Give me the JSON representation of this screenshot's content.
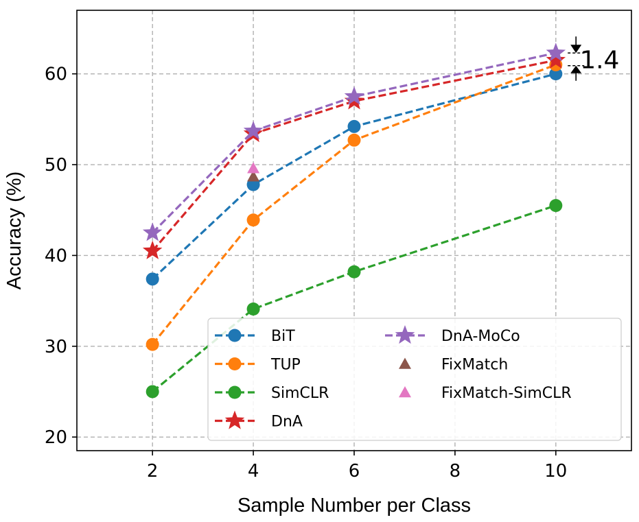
{
  "chart_data": {
    "type": "line",
    "xlabel": "Sample Number per Class",
    "ylabel": "Accuracy (%)",
    "xlim": [
      0.5,
      11.5
    ],
    "ylim": [
      18.5,
      67.0
    ],
    "xticks": [
      2,
      4,
      6,
      8,
      10
    ],
    "yticks": [
      20,
      30,
      40,
      50,
      60
    ],
    "grid": true,
    "legend_position": "bottom-right",
    "series": [
      {
        "name": "BiT",
        "color": "#1f77b4",
        "marker": "circle",
        "line": true,
        "x": [
          2,
          4,
          6,
          10
        ],
        "y": [
          37.4,
          47.8,
          54.2,
          60.0
        ]
      },
      {
        "name": "TUP",
        "color": "#ff7f0e",
        "marker": "circle",
        "line": true,
        "x": [
          2,
          4,
          6,
          10
        ],
        "y": [
          30.2,
          43.9,
          52.7,
          61.0
        ]
      },
      {
        "name": "SimCLR",
        "color": "#2ca02c",
        "marker": "circle",
        "line": true,
        "x": [
          2,
          4,
          6,
          10
        ],
        "y": [
          25.0,
          34.1,
          38.2,
          45.5
        ]
      },
      {
        "name": "DnA",
        "color": "#d62728",
        "marker": "star",
        "line": true,
        "x": [
          2,
          4,
          6,
          10
        ],
        "y": [
          40.5,
          53.4,
          57.0,
          61.5
        ]
      },
      {
        "name": "DnA-MoCo",
        "color": "#9467bd",
        "marker": "star",
        "line": true,
        "x": [
          2,
          4,
          6,
          10
        ],
        "y": [
          42.5,
          53.7,
          57.5,
          62.3
        ]
      },
      {
        "name": "FixMatch",
        "color": "#8c564b",
        "marker": "triangle",
        "line": false,
        "x": [
          4
        ],
        "y": [
          48.7
        ]
      },
      {
        "name": "FixMatch-SimCLR",
        "color": "#e377c2",
        "marker": "triangle",
        "line": false,
        "x": [
          4
        ],
        "y": [
          49.6
        ]
      }
    ],
    "annotations": [
      {
        "text": "1.4",
        "x": 10.4,
        "y_top": 62.3,
        "y_bottom": 60.9
      }
    ]
  }
}
